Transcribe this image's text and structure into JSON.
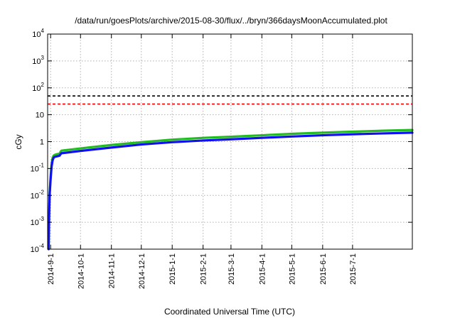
{
  "chart_data": {
    "type": "line",
    "title": "/data/run/goesPlots/archive/2015-08-30/flux/../bryn/366daysMoonAccumulated.plot",
    "xlabel": "Coordinated Universal Time (UTC)",
    "ylabel": "cGy",
    "yscale": "log",
    "ylim": [
      0.0001,
      10000
    ],
    "xlim": [
      "2014-08-29",
      "2015-08-30"
    ],
    "grid": true,
    "x_ticks": [
      "2014-9-1",
      "2014-10-1",
      "2014-11-1",
      "2014-12-1",
      "2015-1-1",
      "2015-2-1",
      "2015-3-1",
      "2015-4-1",
      "2015-5-1",
      "2015-6-1",
      "2015-7-1"
    ],
    "y_ticks": [
      {
        "base": "10",
        "exp": "-4"
      },
      {
        "base": "10",
        "exp": "-3"
      },
      {
        "base": "10",
        "exp": "-2"
      },
      {
        "base": "10",
        "exp": "-1"
      },
      {
        "base": "1",
        "exp": ""
      },
      {
        "base": "10",
        "exp": ""
      },
      {
        "base": "10",
        "exp": "2"
      },
      {
        "base": "10",
        "exp": "3"
      },
      {
        "base": "10",
        "exp": "4"
      }
    ],
    "reference_lines": [
      {
        "y": 50,
        "color": "#000000",
        "style": "dashed"
      },
      {
        "y": 25,
        "color": "#ff0000",
        "style": "dashed"
      }
    ],
    "series": [
      {
        "color": "#22bb22",
        "x": [
          "2014-08-30",
          "2014-08-30T12",
          "2014-08-31",
          "2014-09-01",
          "2014-09-02",
          "2014-09-03",
          "2014-09-04",
          "2014-09-05",
          "2014-09-07",
          "2014-09-10",
          "2014-09-11",
          "2014-09-12",
          "2014-10-01",
          "2014-11-01",
          "2014-12-01",
          "2015-01-01",
          "2015-02-01",
          "2015-03-01",
          "2015-04-01",
          "2015-05-01",
          "2015-06-01",
          "2015-07-01",
          "2015-08-01",
          "2015-08-30"
        ],
        "y": [
          0.0001,
          0.002,
          0.012,
          0.05,
          0.15,
          0.25,
          0.3,
          0.32,
          0.34,
          0.36,
          0.42,
          0.46,
          0.56,
          0.75,
          0.95,
          1.18,
          1.38,
          1.52,
          1.72,
          1.95,
          2.15,
          2.35,
          2.55,
          2.7
        ]
      },
      {
        "color": "#1111ee",
        "x": [
          "2014-08-30",
          "2014-08-30T12",
          "2014-08-31",
          "2014-09-01",
          "2014-09-02",
          "2014-09-03",
          "2014-09-04",
          "2014-09-05",
          "2014-09-07",
          "2014-09-10",
          "2014-09-11",
          "2014-09-12",
          "2014-10-01",
          "2014-11-01",
          "2014-12-01",
          "2015-01-01",
          "2015-02-01",
          "2015-03-01",
          "2015-04-01",
          "2015-05-01",
          "2015-06-01",
          "2015-07-01",
          "2015-08-01",
          "2015-08-30"
        ],
        "y": [
          0.0001,
          0.0015,
          0.01,
          0.04,
          0.12,
          0.2,
          0.25,
          0.27,
          0.28,
          0.3,
          0.34,
          0.37,
          0.45,
          0.6,
          0.78,
          0.95,
          1.1,
          1.22,
          1.38,
          1.55,
          1.72,
          1.88,
          2.02,
          2.15
        ]
      }
    ]
  }
}
